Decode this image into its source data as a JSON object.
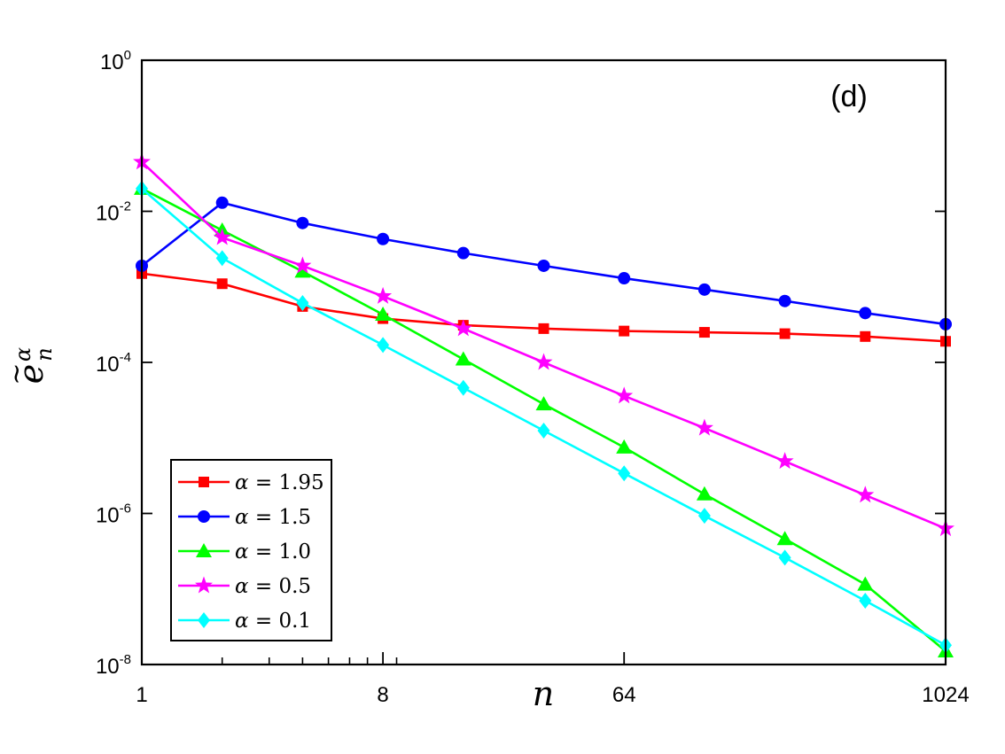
{
  "chart_data": {
    "type": "line",
    "panel_label": "(d)",
    "xlabel": "n",
    "ylabel_base": "e",
    "ylabel_sup": "α",
    "ylabel_sub": "n",
    "ylabel_accent": "~",
    "xscale": "log2",
    "yscale": "log10",
    "xlim": [
      1,
      1024
    ],
    "ylim": [
      1e-08,
      1
    ],
    "x_ticks": [
      {
        "value": 1,
        "label": "1"
      },
      {
        "value": 8,
        "label": "8"
      },
      {
        "value": 64,
        "label": "64"
      },
      {
        "value": 1024,
        "label": "1024"
      }
    ],
    "y_ticks": [
      {
        "value": 1,
        "base": "10",
        "exp": "0"
      },
      {
        "value": 0.01,
        "base": "10",
        "exp": "-2"
      },
      {
        "value": 0.0001,
        "base": "10",
        "exp": "-4"
      },
      {
        "value": 1e-06,
        "base": "10",
        "exp": "-6"
      },
      {
        "value": 1e-08,
        "base": "10",
        "exp": "-8"
      }
    ],
    "x": [
      1,
      2,
      4,
      8,
      16,
      32,
      64,
      128,
      256,
      512,
      1024
    ],
    "legend_position": "bottom-left",
    "series": [
      {
        "name": "α = 1.95",
        "sym": "α",
        "eq": " = 1.95",
        "color": "#ff0000",
        "marker": "square",
        "values": [
          0.0015,
          0.0011,
          0.00055,
          0.00038,
          0.00031,
          0.00028,
          0.00026,
          0.00025,
          0.00024,
          0.00022,
          0.00019
        ]
      },
      {
        "name": "α = 1.5",
        "sym": "α",
        "eq": " = 1.5",
        "color": "#0000ff",
        "marker": "circle",
        "values": [
          0.0019,
          0.013,
          0.007,
          0.0043,
          0.0028,
          0.0019,
          0.0013,
          0.00092,
          0.00065,
          0.00045,
          0.00032
        ]
      },
      {
        "name": "α = 1.0",
        "sym": "α",
        "eq": " = 1.0",
        "color": "#00ff00",
        "marker": "triangle",
        "values": [
          0.02,
          0.0056,
          0.0016,
          0.00043,
          0.00011,
          2.8e-05,
          7.5e-06,
          1.8e-06,
          4.6e-07,
          1.15e-07,
          1.5e-08
        ]
      },
      {
        "name": "α = 0.5",
        "sym": "α",
        "eq": " = 0.5",
        "color": "#ff00ff",
        "marker": "star",
        "values": [
          0.045,
          0.0045,
          0.0019,
          0.00075,
          0.00028,
          0.0001,
          3.6e-05,
          1.35e-05,
          4.9e-06,
          1.75e-06,
          6.3e-07
        ]
      },
      {
        "name": "α = 0.1",
        "sym": "α",
        "eq": " = 0.1",
        "color": "#00ffff",
        "marker": "diamond",
        "values": [
          0.02,
          0.0024,
          0.00061,
          0.00017,
          4.6e-05,
          1.25e-05,
          3.4e-06,
          9.3e-07,
          2.6e-07,
          7e-08,
          1.8e-08
        ]
      }
    ]
  }
}
